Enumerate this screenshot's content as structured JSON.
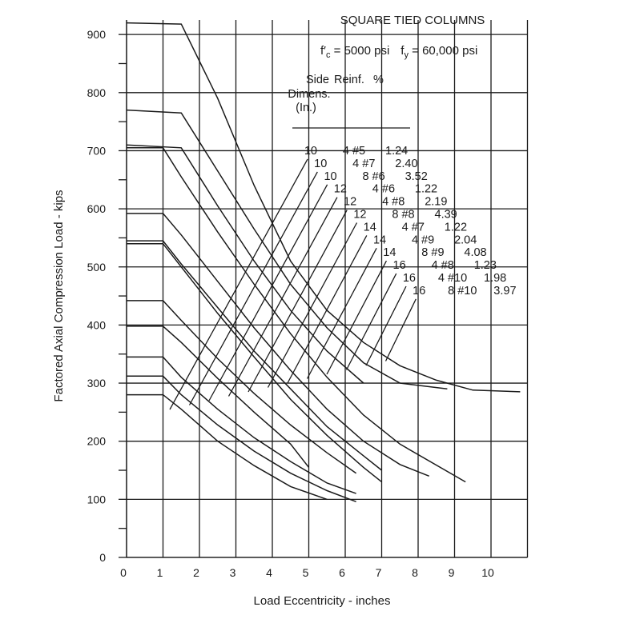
{
  "chart_data": {
    "type": "line",
    "title": "SQUARE TIED COLUMNS",
    "subtitle_parts": {
      "fc_sym": "f′",
      "fc_sub": "c",
      "fc_val": " = 5000 psi",
      "fy_sym": "f",
      "fy_sub": "y",
      "fy_val": " = 60,000 psi"
    },
    "legend_header": {
      "col1": "Side",
      "col2": "Reinf.",
      "col3": "%",
      "line2": "Dimens.",
      "line3": "(In.)"
    },
    "xlabel": "Load Eccentricity - inches",
    "ylabel": "Factored Axial Compression Load - kips",
    "xlim": [
      0,
      11
    ],
    "ylim": [
      0,
      925
    ],
    "x_ticks": [
      "0",
      "1",
      "2",
      "3",
      "4",
      "5",
      "6",
      "7",
      "8",
      "9",
      "10"
    ],
    "y_ticks": [
      "0",
      "100",
      "200",
      "300",
      "400",
      "500",
      "600",
      "700",
      "800",
      "900"
    ],
    "series": [
      {
        "side": "10",
        "reinf": "4 #5",
        "pct": "1.24",
        "points": [
          [
            0,
            280
          ],
          [
            1,
            280
          ],
          [
            1.5,
            255
          ],
          [
            2.5,
            200
          ],
          [
            3.5,
            158
          ],
          [
            4.5,
            122
          ],
          [
            5.5,
            100
          ]
        ]
      },
      {
        "side": "10",
        "reinf": "4 #7",
        "pct": "2.40",
        "points": [
          [
            0,
            312
          ],
          [
            1,
            312
          ],
          [
            1.5,
            280
          ],
          [
            2.5,
            228
          ],
          [
            3.5,
            183
          ],
          [
            4.5,
            145
          ],
          [
            5.5,
            115
          ],
          [
            6.3,
            96
          ]
        ]
      },
      {
        "side": "10",
        "reinf": "8 #6",
        "pct": "3.52",
        "points": [
          [
            0,
            345
          ],
          [
            1,
            345
          ],
          [
            1.5,
            310
          ],
          [
            2.5,
            255
          ],
          [
            3.5,
            206
          ],
          [
            4.5,
            165
          ],
          [
            5.5,
            128
          ],
          [
            6.3,
            110
          ]
        ]
      },
      {
        "side": "12",
        "reinf": "4 #6",
        "pct": "1.22",
        "points": [
          [
            0,
            398
          ],
          [
            1,
            398
          ],
          [
            1.5,
            370
          ],
          [
            2.5,
            308
          ],
          [
            3.5,
            250
          ],
          [
            4.5,
            195
          ],
          [
            5.0,
            155
          ]
        ]
      },
      {
        "side": "12",
        "reinf": "4 #8",
        "pct": "2.19",
        "points": [
          [
            0,
            442
          ],
          [
            1,
            442
          ],
          [
            1.5,
            408
          ],
          [
            2.5,
            342
          ],
          [
            3.5,
            282
          ],
          [
            4.5,
            228
          ],
          [
            5.5,
            180
          ],
          [
            6.3,
            145
          ]
        ]
      },
      {
        "side": "12",
        "reinf": "8 #8",
        "pct": "4.39",
        "points": [
          [
            0,
            540
          ],
          [
            1,
            540
          ],
          [
            1.5,
            500
          ],
          [
            2.5,
            420
          ],
          [
            3.5,
            345
          ],
          [
            4.5,
            272
          ],
          [
            5.5,
            210
          ],
          [
            6.5,
            155
          ],
          [
            7.0,
            130
          ]
        ]
      },
      {
        "side": "14",
        "reinf": "4 #7",
        "pct": "1.22",
        "points": [
          [
            0,
            545
          ],
          [
            1,
            545
          ],
          [
            1.5,
            505
          ],
          [
            2.5,
            430
          ],
          [
            3.5,
            355
          ],
          [
            4.5,
            290
          ],
          [
            5.5,
            225
          ],
          [
            6.5,
            175
          ],
          [
            7.0,
            150
          ]
        ]
      },
      {
        "side": "14",
        "reinf": "4 #9",
        "pct": "2.04",
        "points": [
          [
            0,
            592
          ],
          [
            1,
            592
          ],
          [
            1.5,
            555
          ],
          [
            2.5,
            475
          ],
          [
            3.5,
            395
          ],
          [
            4.5,
            322
          ],
          [
            5.5,
            255
          ],
          [
            6.5,
            200
          ],
          [
            7.5,
            160
          ],
          [
            8.3,
            140
          ]
        ]
      },
      {
        "side": "14",
        "reinf": "8 #9",
        "pct": "4.08",
        "points": [
          [
            0,
            705
          ],
          [
            1,
            705
          ],
          [
            1.5,
            655
          ],
          [
            2.5,
            560
          ],
          [
            3.5,
            470
          ],
          [
            4.5,
            385
          ],
          [
            5.5,
            310
          ],
          [
            6.5,
            245
          ],
          [
            7.5,
            195
          ],
          [
            9.3,
            130
          ]
        ]
      },
      {
        "side": "16",
        "reinf": "4 #8",
        "pct": "1.23",
        "points": [
          [
            0,
            710
          ],
          [
            1.5,
            705
          ],
          [
            2.5,
            605
          ],
          [
            3.5,
            510
          ],
          [
            4.5,
            425
          ],
          [
            5.5,
            355
          ],
          [
            6.5,
            300
          ]
        ]
      },
      {
        "side": "16",
        "reinf": "4 #10",
        "pct": "1.98",
        "points": [
          [
            0,
            770
          ],
          [
            1.5,
            765
          ],
          [
            2.5,
            665
          ],
          [
            3.5,
            565
          ],
          [
            4.5,
            470
          ],
          [
            5.5,
            395
          ],
          [
            6.5,
            335
          ],
          [
            7.5,
            300
          ],
          [
            8.8,
            290
          ]
        ]
      },
      {
        "side": "16",
        "reinf": "8 #10",
        "pct": "3.97",
        "points": [
          [
            0,
            920
          ],
          [
            1.5,
            918
          ],
          [
            2.5,
            790
          ],
          [
            3.5,
            640
          ],
          [
            4.5,
            510
          ],
          [
            5.5,
            425
          ],
          [
            6.5,
            370
          ],
          [
            7.5,
            330
          ],
          [
            8.5,
            305
          ],
          [
            9.5,
            288
          ],
          [
            10.8,
            285
          ]
        ]
      }
    ],
    "color": "#1a1a1a"
  }
}
